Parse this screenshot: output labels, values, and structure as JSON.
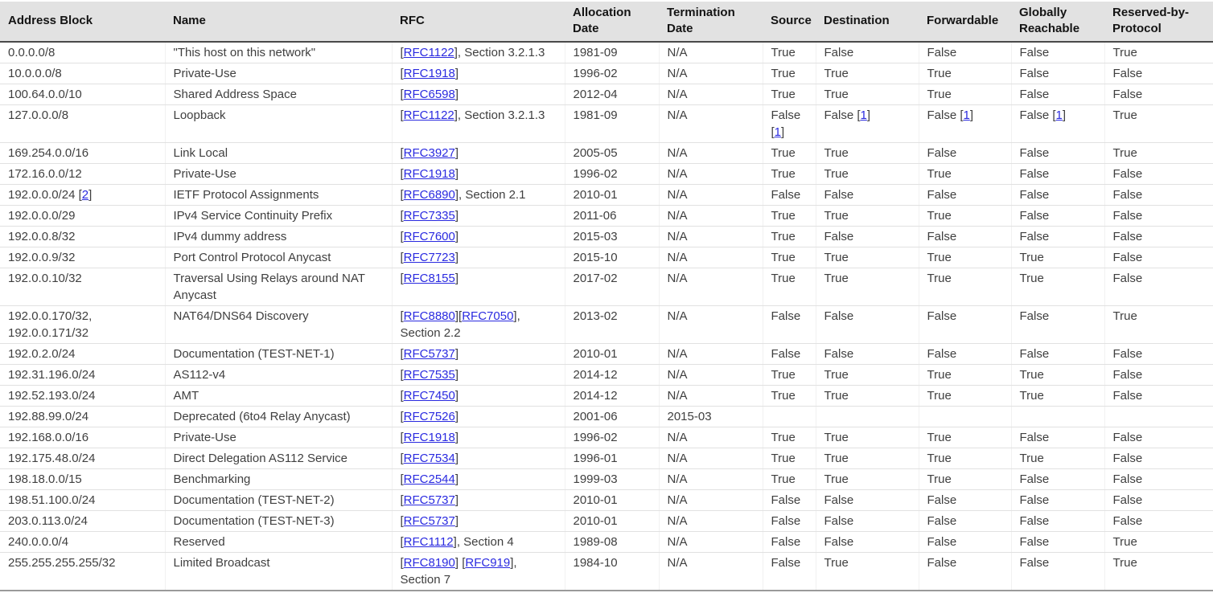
{
  "colors": {
    "header_background": "#e2e2e2",
    "header_text": "#141414",
    "body_text": "#3f3f3f",
    "link": "#2a2ae0",
    "row_border": "#e1e1e1",
    "header_bottom_border": "#4a4a4a",
    "table_bottom_border": "#9a9a9a"
  },
  "table": {
    "columns": [
      {
        "id": "address",
        "label": "Address Block"
      },
      {
        "id": "name",
        "label": "Name"
      },
      {
        "id": "rfc",
        "label": "RFC"
      },
      {
        "id": "allocation_date",
        "label": "Allocation Date"
      },
      {
        "id": "termination_date",
        "label": "Termination Date"
      },
      {
        "id": "source",
        "label": "Source"
      },
      {
        "id": "destination",
        "label": "Destination"
      },
      {
        "id": "forwardable",
        "label": "Forwardable"
      },
      {
        "id": "globally_reachable",
        "label": "Globally Reachable"
      },
      {
        "id": "reserved_by_protocol",
        "label": "Reserved-by-Protocol"
      }
    ],
    "rows": [
      {
        "address": "0.0.0.0/8",
        "name": "\"This host on this network\"",
        "rfc": [
          {
            "text": "["
          },
          {
            "link": "RFC1122"
          },
          {
            "text": "], Section 3.2.1.3"
          }
        ],
        "allocation_date": "1981-09",
        "termination_date": "N/A",
        "source": "True",
        "destination": "False",
        "forwardable": "False",
        "globally_reachable": "False",
        "reserved_by_protocol": "True"
      },
      {
        "address": "10.0.0.0/8",
        "name": "Private-Use",
        "rfc": [
          {
            "text": "["
          },
          {
            "link": "RFC1918"
          },
          {
            "text": "]"
          }
        ],
        "allocation_date": "1996-02",
        "termination_date": "N/A",
        "source": "True",
        "destination": "True",
        "forwardable": "True",
        "globally_reachable": "False",
        "reserved_by_protocol": "False"
      },
      {
        "address": "100.64.0.0/10",
        "name": "Shared Address Space",
        "rfc": [
          {
            "text": "["
          },
          {
            "link": "RFC6598"
          },
          {
            "text": "]"
          }
        ],
        "allocation_date": "2012-04",
        "termination_date": "N/A",
        "source": "True",
        "destination": "True",
        "forwardable": "True",
        "globally_reachable": "False",
        "reserved_by_protocol": "False"
      },
      {
        "address": "127.0.0.0/8",
        "name": "Loopback",
        "rfc": [
          {
            "text": "["
          },
          {
            "link": "RFC1122"
          },
          {
            "text": "], Section 3.2.1.3"
          }
        ],
        "allocation_date": "1981-09",
        "termination_date": "N/A",
        "source": [
          {
            "text": "False "
          },
          {
            "note": "1"
          }
        ],
        "destination": [
          {
            "text": "False "
          },
          {
            "note": "1"
          }
        ],
        "forwardable": [
          {
            "text": "False "
          },
          {
            "note": "1"
          }
        ],
        "globally_reachable": [
          {
            "text": "False "
          },
          {
            "note": "1"
          }
        ],
        "reserved_by_protocol": "True"
      },
      {
        "address": "169.254.0.0/16",
        "name": "Link Local",
        "rfc": [
          {
            "text": "["
          },
          {
            "link": "RFC3927"
          },
          {
            "text": "]"
          }
        ],
        "allocation_date": "2005-05",
        "termination_date": "N/A",
        "source": "True",
        "destination": "True",
        "forwardable": "False",
        "globally_reachable": "False",
        "reserved_by_protocol": "True"
      },
      {
        "address": "172.16.0.0/12",
        "name": "Private-Use",
        "rfc": [
          {
            "text": "["
          },
          {
            "link": "RFC1918"
          },
          {
            "text": "]"
          }
        ],
        "allocation_date": "1996-02",
        "termination_date": "N/A",
        "source": "True",
        "destination": "True",
        "forwardable": "True",
        "globally_reachable": "False",
        "reserved_by_protocol": "False"
      },
      {
        "address": [
          {
            "text": "192.0.0.0/24 "
          },
          {
            "note": "2"
          }
        ],
        "name": "IETF Protocol Assignments",
        "rfc": [
          {
            "text": "["
          },
          {
            "link": "RFC6890"
          },
          {
            "text": "], Section 2.1"
          }
        ],
        "allocation_date": "2010-01",
        "termination_date": "N/A",
        "source": "False",
        "destination": "False",
        "forwardable": "False",
        "globally_reachable": "False",
        "reserved_by_protocol": "False"
      },
      {
        "address": "192.0.0.0/29",
        "name": "IPv4 Service Continuity Prefix",
        "rfc": [
          {
            "text": "["
          },
          {
            "link": "RFC7335"
          },
          {
            "text": "]"
          }
        ],
        "allocation_date": "2011-06",
        "termination_date": "N/A",
        "source": "True",
        "destination": "True",
        "forwardable": "True",
        "globally_reachable": "False",
        "reserved_by_protocol": "False"
      },
      {
        "address": "192.0.0.8/32",
        "name": "IPv4 dummy address",
        "rfc": [
          {
            "text": "["
          },
          {
            "link": "RFC7600"
          },
          {
            "text": "]"
          }
        ],
        "allocation_date": "2015-03",
        "termination_date": "N/A",
        "source": "True",
        "destination": "False",
        "forwardable": "False",
        "globally_reachable": "False",
        "reserved_by_protocol": "False"
      },
      {
        "address": "192.0.0.9/32",
        "name": "Port Control Protocol Anycast",
        "rfc": [
          {
            "text": "["
          },
          {
            "link": "RFC7723"
          },
          {
            "text": "]"
          }
        ],
        "allocation_date": "2015-10",
        "termination_date": "N/A",
        "source": "True",
        "destination": "True",
        "forwardable": "True",
        "globally_reachable": "True",
        "reserved_by_protocol": "False"
      },
      {
        "address": "192.0.0.10/32",
        "name": "Traversal Using Relays around NAT Anycast",
        "rfc": [
          {
            "text": "["
          },
          {
            "link": "RFC8155"
          },
          {
            "text": "]"
          }
        ],
        "allocation_date": "2017-02",
        "termination_date": "N/A",
        "source": "True",
        "destination": "True",
        "forwardable": "True",
        "globally_reachable": "True",
        "reserved_by_protocol": "False"
      },
      {
        "address": "192.0.0.170/32, 192.0.0.171/32",
        "name": "NAT64/DNS64 Discovery",
        "rfc": [
          {
            "text": "["
          },
          {
            "link": "RFC8880"
          },
          {
            "text": "]["
          },
          {
            "link": "RFC7050"
          },
          {
            "text": "], Section 2.2"
          }
        ],
        "allocation_date": "2013-02",
        "termination_date": "N/A",
        "source": "False",
        "destination": "False",
        "forwardable": "False",
        "globally_reachable": "False",
        "reserved_by_protocol": "True"
      },
      {
        "address": "192.0.2.0/24",
        "name": "Documentation (TEST-NET-1)",
        "rfc": [
          {
            "text": "["
          },
          {
            "link": "RFC5737"
          },
          {
            "text": "]"
          }
        ],
        "allocation_date": "2010-01",
        "termination_date": "N/A",
        "source": "False",
        "destination": "False",
        "forwardable": "False",
        "globally_reachable": "False",
        "reserved_by_protocol": "False"
      },
      {
        "address": "192.31.196.0/24",
        "name": "AS112-v4",
        "rfc": [
          {
            "text": "["
          },
          {
            "link": "RFC7535"
          },
          {
            "text": "]"
          }
        ],
        "allocation_date": "2014-12",
        "termination_date": "N/A",
        "source": "True",
        "destination": "True",
        "forwardable": "True",
        "globally_reachable": "True",
        "reserved_by_protocol": "False"
      },
      {
        "address": "192.52.193.0/24",
        "name": "AMT",
        "rfc": [
          {
            "text": "["
          },
          {
            "link": "RFC7450"
          },
          {
            "text": "]"
          }
        ],
        "allocation_date": "2014-12",
        "termination_date": "N/A",
        "source": "True",
        "destination": "True",
        "forwardable": "True",
        "globally_reachable": "True",
        "reserved_by_protocol": "False"
      },
      {
        "address": "192.88.99.0/24",
        "name": "Deprecated (6to4 Relay Anycast)",
        "rfc": [
          {
            "text": "["
          },
          {
            "link": "RFC7526"
          },
          {
            "text": "]"
          }
        ],
        "allocation_date": "2001-06",
        "termination_date": "2015-03",
        "source": "",
        "destination": "",
        "forwardable": "",
        "globally_reachable": "",
        "reserved_by_protocol": ""
      },
      {
        "address": "192.168.0.0/16",
        "name": "Private-Use",
        "rfc": [
          {
            "text": "["
          },
          {
            "link": "RFC1918"
          },
          {
            "text": "]"
          }
        ],
        "allocation_date": "1996-02",
        "termination_date": "N/A",
        "source": "True",
        "destination": "True",
        "forwardable": "True",
        "globally_reachable": "False",
        "reserved_by_protocol": "False"
      },
      {
        "address": "192.175.48.0/24",
        "name": "Direct Delegation AS112 Service",
        "rfc": [
          {
            "text": "["
          },
          {
            "link": "RFC7534"
          },
          {
            "text": "]"
          }
        ],
        "allocation_date": "1996-01",
        "termination_date": "N/A",
        "source": "True",
        "destination": "True",
        "forwardable": "True",
        "globally_reachable": "True",
        "reserved_by_protocol": "False"
      },
      {
        "address": "198.18.0.0/15",
        "name": "Benchmarking",
        "rfc": [
          {
            "text": "["
          },
          {
            "link": "RFC2544"
          },
          {
            "text": "]"
          }
        ],
        "allocation_date": "1999-03",
        "termination_date": "N/A",
        "source": "True",
        "destination": "True",
        "forwardable": "True",
        "globally_reachable": "False",
        "reserved_by_protocol": "False"
      },
      {
        "address": "198.51.100.0/24",
        "name": "Documentation (TEST-NET-2)",
        "rfc": [
          {
            "text": "["
          },
          {
            "link": "RFC5737"
          },
          {
            "text": "]"
          }
        ],
        "allocation_date": "2010-01",
        "termination_date": "N/A",
        "source": "False",
        "destination": "False",
        "forwardable": "False",
        "globally_reachable": "False",
        "reserved_by_protocol": "False"
      },
      {
        "address": "203.0.113.0/24",
        "name": "Documentation (TEST-NET-3)",
        "rfc": [
          {
            "text": "["
          },
          {
            "link": "RFC5737"
          },
          {
            "text": "]"
          }
        ],
        "allocation_date": "2010-01",
        "termination_date": "N/A",
        "source": "False",
        "destination": "False",
        "forwardable": "False",
        "globally_reachable": "False",
        "reserved_by_protocol": "False"
      },
      {
        "address": "240.0.0.0/4",
        "name": "Reserved",
        "rfc": [
          {
            "text": "["
          },
          {
            "link": "RFC1112"
          },
          {
            "text": "], Section 4"
          }
        ],
        "allocation_date": "1989-08",
        "termination_date": "N/A",
        "source": "False",
        "destination": "False",
        "forwardable": "False",
        "globally_reachable": "False",
        "reserved_by_protocol": "True"
      },
      {
        "address": "255.255.255.255/32",
        "name": "Limited Broadcast",
        "rfc": [
          {
            "text": "["
          },
          {
            "link": "RFC8190"
          },
          {
            "text": "] ["
          },
          {
            "link": "RFC919"
          },
          {
            "text": "], Section 7"
          }
        ],
        "allocation_date": "1984-10",
        "termination_date": "N/A",
        "source": "False",
        "destination": "True",
        "forwardable": "False",
        "globally_reachable": "False",
        "reserved_by_protocol": "True"
      }
    ]
  }
}
